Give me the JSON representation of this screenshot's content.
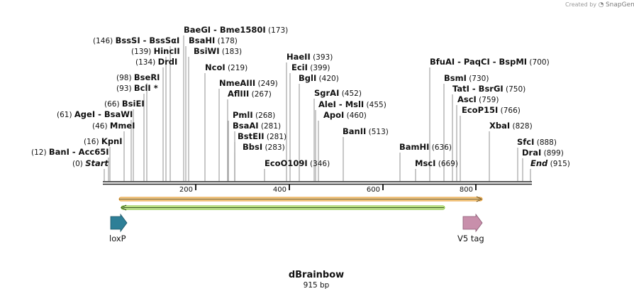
{
  "watermark": {
    "prefix": "Created by",
    "brand": "SnapGene"
  },
  "plasmid": {
    "name": "dBrainbow",
    "length_label": "915 bp",
    "length": 915
  },
  "ruler_ticks": [
    "200",
    "400",
    "600",
    "800"
  ],
  "sites": [
    {
      "num": "(0)",
      "label": "Start",
      "italic": true
    },
    {
      "num": "(12)",
      "label": "BanI  -  Acc65I"
    },
    {
      "num": "(16)",
      "label": "KpnI"
    },
    {
      "num": "(46)",
      "label": "MmeI"
    },
    {
      "num": "(61)",
      "label": "AgeI  -  BsaWI"
    },
    {
      "num": "(66)",
      "label": "BsiEI"
    },
    {
      "num": "(93)",
      "label": "BclI *"
    },
    {
      "num": "(98)",
      "label": "BseRI"
    },
    {
      "num": "(134)",
      "label": "DrdI"
    },
    {
      "num": "(139)",
      "label": "HincII"
    },
    {
      "num": "(146)",
      "label": "BssSI  -  BssSαI"
    },
    {
      "num": "(173)",
      "label": "BaeGI  -  Bme1580I"
    },
    {
      "num": "(178)",
      "label": "BsaHI"
    },
    {
      "num": "(183)",
      "label": "BsiWI"
    },
    {
      "num": "(219)",
      "label": "NcoI"
    },
    {
      "num": "(249)",
      "label": "NmeAIII"
    },
    {
      "num": "(267)",
      "label": "AflIII"
    },
    {
      "num": "(268)",
      "label": "PmlI"
    },
    {
      "num": "(281)",
      "label": "BsaAI"
    },
    {
      "num": "(281)",
      "label": "BstEII"
    },
    {
      "num": "(283)",
      "label": "BbsI"
    },
    {
      "num": "(346)",
      "label": "EcoO109I"
    },
    {
      "num": "(393)",
      "label": "HaeII"
    },
    {
      "num": "(399)",
      "label": "EciI"
    },
    {
      "num": "(420)",
      "label": "BglI"
    },
    {
      "num": "(452)",
      "label": "SgrAI"
    },
    {
      "num": "(455)",
      "label": "AleI  -  MslI"
    },
    {
      "num": "(460)",
      "label": "ApoI"
    },
    {
      "num": "(513)",
      "label": "BanII"
    },
    {
      "num": "(636)",
      "label": "BamHI"
    },
    {
      "num": "(669)",
      "label": "MscI"
    },
    {
      "num": "(700)",
      "label": "BfuAI  -  PaqCI  -  BspMI"
    },
    {
      "num": "(730)",
      "label": "BsmI"
    },
    {
      "num": "(750)",
      "label": "TatI  -  BsrGI"
    },
    {
      "num": "(759)",
      "label": "AscI"
    },
    {
      "num": "(766)",
      "label": "EcoP15I"
    },
    {
      "num": "(828)",
      "label": "XbaI"
    },
    {
      "num": "(888)",
      "label": "SfcI"
    },
    {
      "num": "(899)",
      "label": "DraI"
    },
    {
      "num": "(915)",
      "label": "End",
      "italic": true
    }
  ],
  "features": [
    {
      "name": "loxP",
      "color": "#2e7f97"
    },
    {
      "name": "V5 tag",
      "color": "#c88fab"
    }
  ],
  "colors": {
    "orf_forward": "#f0b04a",
    "orf_reverse": "#8ecb3a",
    "backbone": "#222222"
  }
}
